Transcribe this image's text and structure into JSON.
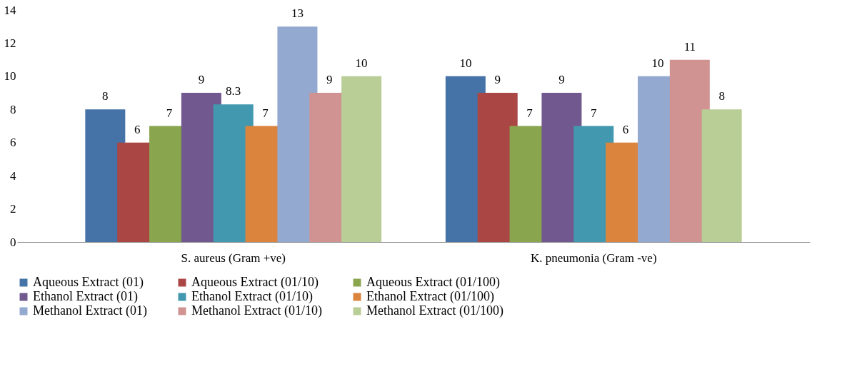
{
  "chart_data": {
    "type": "bar",
    "categories": [
      "S. aureus (Gram +ve)",
      "K. pneumonia (Gram -ve)"
    ],
    "series": [
      {
        "name": "Aqueous Extract (01)",
        "color": "#4572a7",
        "values": [
          8,
          10
        ]
      },
      {
        "name": "Aqueous Extract (01/10)",
        "color": "#aa4643",
        "values": [
          6,
          9
        ]
      },
      {
        "name": "Aqueous Extract (01/100)",
        "color": "#89a54e",
        "values": [
          7,
          7
        ]
      },
      {
        "name": "Ethanol Extract (01)",
        "color": "#71588f",
        "values": [
          9,
          9
        ]
      },
      {
        "name": "Ethanol Extract (01/10)",
        "color": "#4198af",
        "values": [
          8.3,
          7
        ]
      },
      {
        "name": "Ethanol Extract (01/100)",
        "color": "#db843d",
        "values": [
          7,
          6
        ]
      },
      {
        "name": "Methanol Extract (01)",
        "color": "#93a9cf",
        "values": [
          13,
          10
        ]
      },
      {
        "name": "Methanol Extract (01/10)",
        "color": "#d19392",
        "values": [
          9,
          11
        ]
      },
      {
        "name": "Methanol Extract (01/100)",
        "color": "#b9cd96",
        "values": [
          10,
          8
        ]
      }
    ],
    "ylim": [
      0,
      14
    ],
    "yticks": [
      0,
      2,
      4,
      6,
      8,
      10,
      12,
      14
    ],
    "grid": false,
    "data_labels": true,
    "legend": "bottom"
  }
}
